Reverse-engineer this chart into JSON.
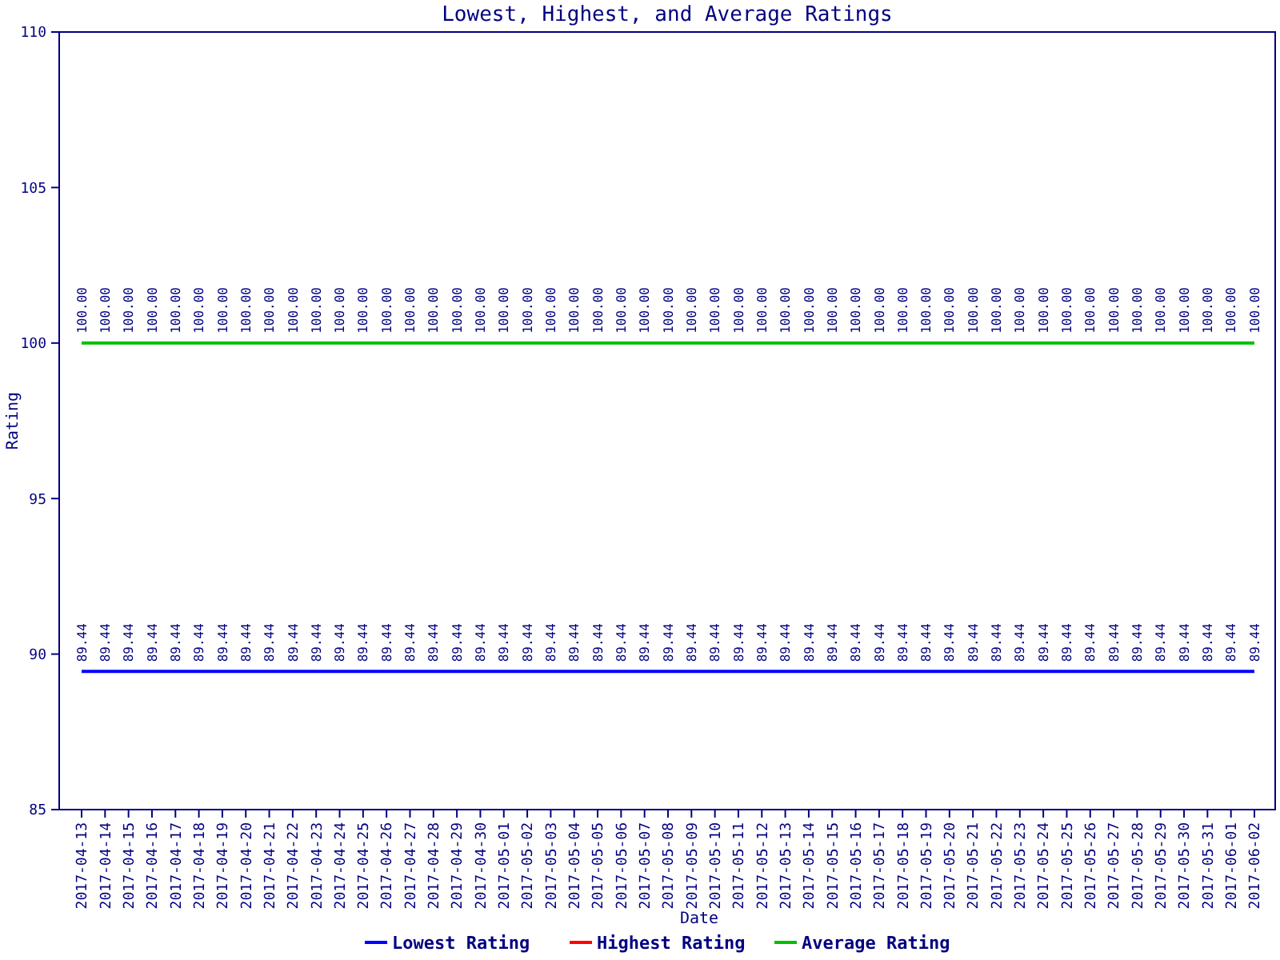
{
  "chart_data": {
    "type": "line",
    "title": "Lowest, Highest, and Average Ratings",
    "xlabel": "Date",
    "ylabel": "Rating",
    "categories": [
      "2017-04-13",
      "2017-04-14",
      "2017-04-15",
      "2017-04-16",
      "2017-04-17",
      "2017-04-18",
      "2017-04-19",
      "2017-04-20",
      "2017-04-21",
      "2017-04-22",
      "2017-04-23",
      "2017-04-24",
      "2017-04-25",
      "2017-04-26",
      "2017-04-27",
      "2017-04-28",
      "2017-04-29",
      "2017-04-30",
      "2017-05-01",
      "2017-05-02",
      "2017-05-03",
      "2017-05-04",
      "2017-05-05",
      "2017-05-06",
      "2017-05-07",
      "2017-05-08",
      "2017-05-09",
      "2017-05-10",
      "2017-05-11",
      "2017-05-12",
      "2017-05-13",
      "2017-05-14",
      "2017-05-15",
      "2017-05-16",
      "2017-05-17",
      "2017-05-18",
      "2017-05-19",
      "2017-05-20",
      "2017-05-21",
      "2017-05-22",
      "2017-05-23",
      "2017-05-24",
      "2017-05-25",
      "2017-05-26",
      "2017-05-27",
      "2017-05-28",
      "2017-05-29",
      "2017-05-30",
      "2017-05-31",
      "2017-06-01",
      "2017-06-02"
    ],
    "series": [
      {
        "name": "Lowest Rating",
        "color": "#0000ff",
        "values": [
          89.44,
          89.44,
          89.44,
          89.44,
          89.44,
          89.44,
          89.44,
          89.44,
          89.44,
          89.44,
          89.44,
          89.44,
          89.44,
          89.44,
          89.44,
          89.44,
          89.44,
          89.44,
          89.44,
          89.44,
          89.44,
          89.44,
          89.44,
          89.44,
          89.44,
          89.44,
          89.44,
          89.44,
          89.44,
          89.44,
          89.44,
          89.44,
          89.44,
          89.44,
          89.44,
          89.44,
          89.44,
          89.44,
          89.44,
          89.44,
          89.44,
          89.44,
          89.44,
          89.44,
          89.44,
          89.44,
          89.44,
          89.44,
          89.44,
          89.44,
          89.44
        ],
        "value_labels": [
          "89.44",
          "89.44",
          "89.44",
          "89.44",
          "89.44",
          "89.44",
          "89.44",
          "89.44",
          "89.44",
          "89.44",
          "89.44",
          "89.44",
          "89.44",
          "89.44",
          "89.44",
          "89.44",
          "89.44",
          "89.44",
          "89.44",
          "89.44",
          "89.44",
          "89.44",
          "89.44",
          "89.44",
          "89.44",
          "89.44",
          "89.44",
          "89.44",
          "89.44",
          "89.44",
          "89.44",
          "89.44",
          "89.44",
          "89.44",
          "89.44",
          "89.44",
          "89.44",
          "89.44",
          "89.44",
          "89.44",
          "89.44",
          "89.44",
          "89.44",
          "89.44",
          "89.44",
          "89.44",
          "89.44",
          "89.44",
          "89.44",
          "89.44",
          "89.44"
        ]
      },
      {
        "name": "Highest Rating",
        "color": "#ff0000",
        "values": [
          null,
          null,
          null,
          null,
          null,
          null,
          null,
          null,
          null,
          null,
          null,
          null,
          null,
          null,
          null,
          null,
          null,
          null,
          null,
          null,
          null,
          null,
          null,
          null,
          null,
          null,
          null,
          null,
          null,
          null,
          null,
          null,
          null,
          null,
          null,
          null,
          null,
          null,
          null,
          null,
          null,
          null,
          null,
          null,
          null,
          null,
          null,
          null,
          null,
          null,
          null
        ]
      },
      {
        "name": "Average Rating",
        "color": "#00c000",
        "values": [
          100,
          100,
          100,
          100,
          100,
          100,
          100,
          100,
          100,
          100,
          100,
          100,
          100,
          100,
          100,
          100,
          100,
          100,
          100,
          100,
          100,
          100,
          100,
          100,
          100,
          100,
          100,
          100,
          100,
          100,
          100,
          100,
          100,
          100,
          100,
          100,
          100,
          100,
          100,
          100,
          100,
          100,
          100,
          100,
          100,
          100,
          100,
          100,
          100,
          100,
          100
        ],
        "value_labels": [
          "100.00",
          "100.00",
          "100.00",
          "100.00",
          "100.00",
          "100.00",
          "100.00",
          "100.00",
          "100.00",
          "100.00",
          "100.00",
          "100.00",
          "100.00",
          "100.00",
          "100.00",
          "100.00",
          "100.00",
          "100.00",
          "100.00",
          "100.00",
          "100.00",
          "100.00",
          "100.00",
          "100.00",
          "100.00",
          "100.00",
          "100.00",
          "100.00",
          "100.00",
          "100.00",
          "100.00",
          "100.00",
          "100.00",
          "100.00",
          "100.00",
          "100.00",
          "100.00",
          "100.00",
          "100.00",
          "100.00",
          "100.00",
          "100.00",
          "100.00",
          "100.00",
          "100.00",
          "100.00",
          "100.00",
          "100.00",
          "100.00",
          "100.00",
          "100.00"
        ]
      }
    ],
    "ylim": [
      85,
      110
    ],
    "yticks": [
      85,
      90,
      95,
      100,
      105,
      110
    ],
    "grid": false,
    "legend": "bottom",
    "marker": "none",
    "line_style": "solid"
  }
}
